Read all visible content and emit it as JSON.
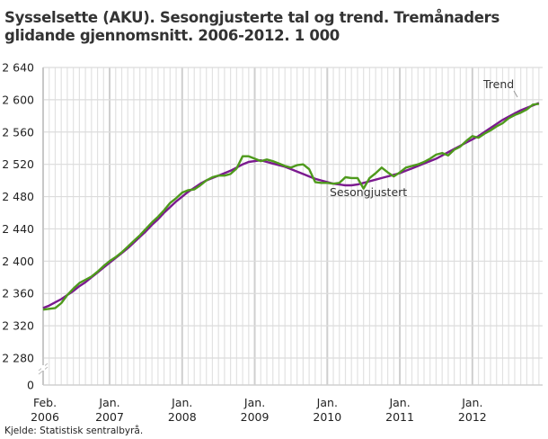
{
  "chart_data": {
    "type": "line",
    "title": "Sysselsette (AKU). Sesongjusterte tal og trend. Tremånaders glidande gjennomsnitt. 2006-2012. 1 000",
    "xlabel": "",
    "ylabel": "",
    "ylim": [
      2280,
      2640
    ],
    "y_axis_break": true,
    "y_ticks": [
      "0",
      "2 280",
      "2 320",
      "2 360",
      "2 400",
      "2 440",
      "2 480",
      "2 520",
      "2 560",
      "2 600",
      "2 640"
    ],
    "x_ticks": [
      {
        "month": "Feb.",
        "year": "2006"
      },
      {
        "month": "Jan.",
        "year": "2007"
      },
      {
        "month": "Jan.",
        "year": "2008"
      },
      {
        "month": "Jan.",
        "year": "2009"
      },
      {
        "month": "Jan.",
        "year": "2010"
      },
      {
        "month": "Jan.",
        "year": "2011"
      },
      {
        "month": "Jan.",
        "year": "2012"
      }
    ],
    "x_start": "2006-02",
    "x_end": "2012-12",
    "grid": true,
    "legend": "inline labels",
    "annotations": [
      {
        "text": "Trend",
        "series": "Trend"
      },
      {
        "text": "Sesongjustert",
        "series": "Sesongjustert"
      }
    ],
    "series": [
      {
        "name": "Sesongjustert",
        "color": "#4e9a1c",
        "values": [
          2340,
          2341,
          2342,
          2348,
          2358,
          2366,
          2373,
          2377,
          2381,
          2387,
          2394,
          2400,
          2405,
          2411,
          2418,
          2425,
          2432,
          2440,
          2448,
          2455,
          2463,
          2472,
          2478,
          2485,
          2488,
          2489,
          2494,
          2500,
          2504,
          2506,
          2506,
          2508,
          2515,
          2530,
          2530,
          2527,
          2524,
          2526,
          2524,
          2521,
          2518,
          2516,
          2519,
          2520,
          2514,
          2498,
          2497,
          2497,
          2496,
          2497,
          2504,
          2503,
          2503,
          2490,
          2503,
          2509,
          2516,
          2510,
          2505,
          2510,
          2516,
          2518,
          2520,
          2523,
          2527,
          2532,
          2534,
          2531,
          2538,
          2542,
          2549,
          2555,
          2553,
          2558,
          2562,
          2567,
          2571,
          2577,
          2581,
          2584,
          2588,
          2594,
          2595,
          2589,
          2588,
          2594,
          2603,
          2602,
          2592,
          2592
        ]
      },
      {
        "name": "Trend",
        "color": "#7b1a8f",
        "values": [
          2342,
          2345,
          2349,
          2353,
          2358,
          2363,
          2369,
          2374,
          2380,
          2386,
          2392,
          2398,
          2404,
          2410,
          2416,
          2423,
          2430,
          2437,
          2445,
          2452,
          2460,
          2467,
          2474,
          2480,
          2486,
          2491,
          2496,
          2500,
          2503,
          2506,
          2509,
          2512,
          2516,
          2520,
          2523,
          2524,
          2525,
          2523,
          2521,
          2519,
          2517,
          2514,
          2511,
          2508,
          2505,
          2502,
          2500,
          2498,
          2496,
          2495,
          2494,
          2494,
          2495,
          2497,
          2499,
          2501,
          2503,
          2505,
          2507,
          2509,
          2512,
          2515,
          2518,
          2521,
          2524,
          2527,
          2531,
          2535,
          2539,
          2543,
          2547,
          2551,
          2555,
          2560,
          2565,
          2570,
          2575,
          2579,
          2583,
          2587,
          2590,
          2593,
          2596,
          2598,
          2599,
          2599,
          2598,
          2597,
          2596,
          2595
        ]
      }
    ]
  },
  "source": "Kjelde: Statistisk sentralbyrå."
}
